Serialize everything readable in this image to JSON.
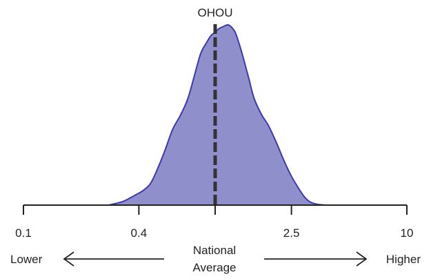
{
  "chart_data": {
    "type": "area",
    "title": "",
    "xlabel": "",
    "ylabel": "",
    "x_scale": "log",
    "xlim": [
      0.1,
      10
    ],
    "ylim": [
      0,
      1
    ],
    "ticks": [
      {
        "value": 0.1,
        "label": "0.1"
      },
      {
        "value": 0.4,
        "label": "0.4"
      },
      {
        "value": 1.0,
        "label": ""
      },
      {
        "value": 2.5,
        "label": "2.5"
      },
      {
        "value": 10,
        "label": "10"
      }
    ],
    "density": {
      "x": [
        0.28,
        0.33,
        0.36,
        0.39,
        0.42,
        0.46,
        0.5,
        0.55,
        0.6,
        0.66,
        0.72,
        0.78,
        0.84,
        0.9,
        0.95,
        1.0,
        1.05,
        1.1,
        1.16,
        1.21,
        1.27,
        1.33,
        1.4,
        1.5,
        1.6,
        1.75,
        1.9,
        2.1,
        2.3,
        2.5,
        2.7,
        2.9,
        3.1,
        3.4,
        3.8
      ],
      "y": [
        0.0,
        0.02,
        0.04,
        0.06,
        0.08,
        0.12,
        0.2,
        0.31,
        0.42,
        0.5,
        0.59,
        0.72,
        0.84,
        0.9,
        0.94,
        0.96,
        0.98,
        0.99,
        1.0,
        0.99,
        0.96,
        0.9,
        0.82,
        0.7,
        0.59,
        0.5,
        0.44,
        0.34,
        0.24,
        0.16,
        0.1,
        0.05,
        0.02,
        0.005,
        0.0
      ]
    },
    "series": [
      {
        "name": "",
        "fill": "#8f8fcb",
        "stroke": "#3a3ab0"
      }
    ],
    "marker": {
      "value": 1.0,
      "label": "OHOU",
      "color": "#333333"
    },
    "grid": false,
    "legend": "none"
  },
  "axis_annotations": {
    "left": "Lower",
    "right": "Higher",
    "center_line1": "National",
    "center_line2": "Average"
  }
}
